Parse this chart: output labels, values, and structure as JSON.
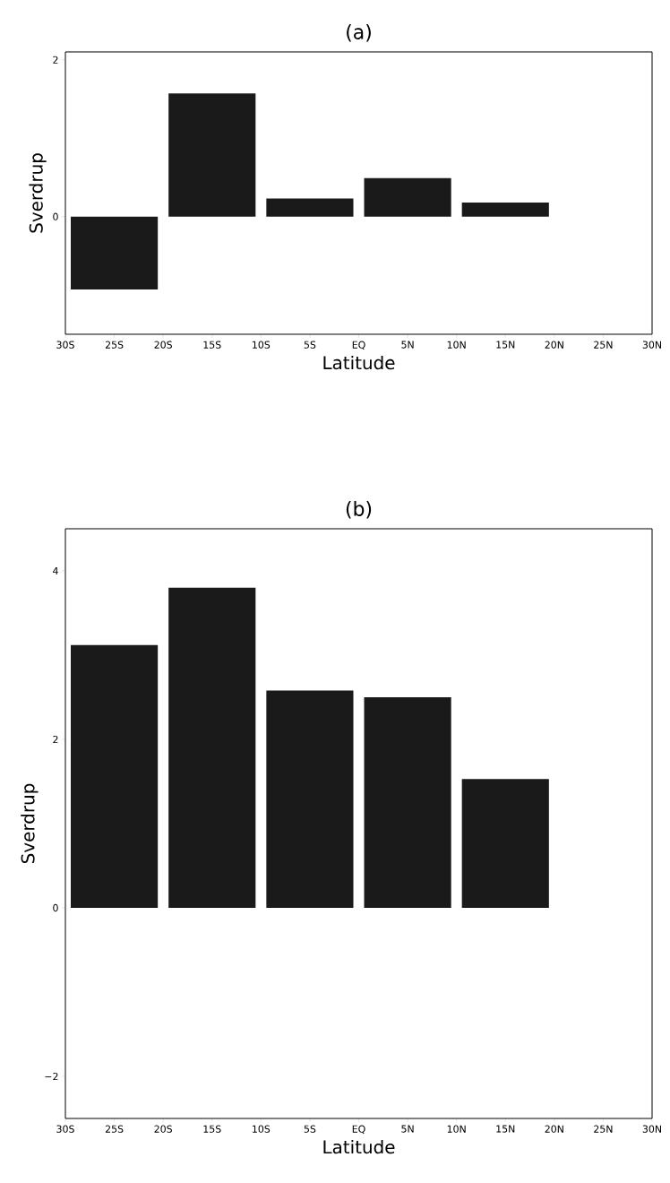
{
  "chart_data": [
    {
      "type": "bar",
      "title": "(a)",
      "xlabel": "Latitude",
      "ylabel": "Sverdrup",
      "x": [
        -25,
        -15,
        -5,
        5,
        15
      ],
      "values": [
        -0.93,
        1.57,
        0.23,
        0.49,
        0.18
      ],
      "color": "#1a1a1a",
      "xlim": [
        -30,
        30
      ],
      "xticks": [
        {
          "value": -30,
          "label": "30S"
        },
        {
          "value": -25,
          "label": "25S"
        },
        {
          "value": -20,
          "label": "20S"
        },
        {
          "value": -15,
          "label": "15S"
        },
        {
          "value": -10,
          "label": "10S"
        },
        {
          "value": -5,
          "label": "5S"
        },
        {
          "value": 0,
          "label": "EQ"
        },
        {
          "value": 5,
          "label": "5N"
        },
        {
          "value": 10,
          "label": "10N"
        },
        {
          "value": 15,
          "label": "15N"
        },
        {
          "value": 20,
          "label": "20N"
        },
        {
          "value": 25,
          "label": "25N"
        },
        {
          "value": 30,
          "label": "30N"
        }
      ],
      "ylim": [
        -1.5,
        2.1
      ],
      "yticks": [
        0,
        2
      ]
    },
    {
      "type": "bar",
      "title": "(b)",
      "xlabel": "Latitude",
      "ylabel": "Sverdrup",
      "x": [
        -25,
        -15,
        -5,
        5,
        15
      ],
      "values": [
        3.12,
        3.8,
        2.58,
        2.5,
        1.53
      ],
      "color": "#1a1a1a",
      "xlim": [
        -30,
        30
      ],
      "xticks": [
        {
          "value": -30,
          "label": "30S"
        },
        {
          "value": -25,
          "label": "25S"
        },
        {
          "value": -20,
          "label": "20S"
        },
        {
          "value": -15,
          "label": "15S"
        },
        {
          "value": -10,
          "label": "10S"
        },
        {
          "value": -5,
          "label": "5S"
        },
        {
          "value": 0,
          "label": "EQ"
        },
        {
          "value": 5,
          "label": "5N"
        },
        {
          "value": 10,
          "label": "10N"
        },
        {
          "value": 15,
          "label": "15N"
        },
        {
          "value": 20,
          "label": "20N"
        },
        {
          "value": 25,
          "label": "25N"
        },
        {
          "value": 30,
          "label": "30N"
        }
      ],
      "ylim": [
        -2.5,
        4.5
      ],
      "yticks": [
        {
          "value": -2,
          "label": "−2"
        },
        0,
        2,
        4
      ]
    }
  ]
}
